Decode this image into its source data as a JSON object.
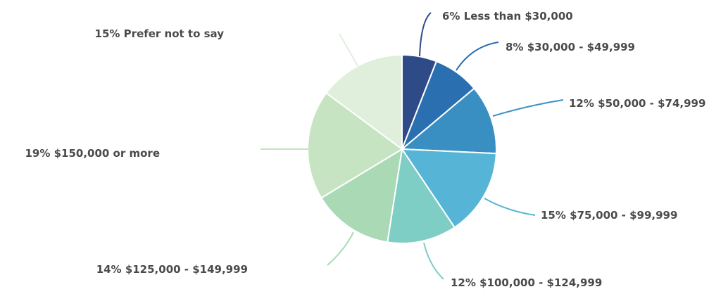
{
  "chart_data": {
    "type": "pie",
    "title": "",
    "categories": [
      "Less than $30,000",
      "$30,000 - $49,999",
      "$50,000 - $74,999",
      "$75,000 - $99,999",
      "$100,000 - $124,999",
      "$125,000 - $149,999",
      "$150,000 or more",
      "Prefer not to say"
    ],
    "values": [
      6,
      8,
      12,
      15,
      12,
      14,
      19,
      15
    ],
    "labels": [
      "6% Less than $30,000",
      "8% $30,000 - $49,999",
      "12% $50,000 - $74,999",
      "15% $75,000 - $99,999",
      "12% $100,000 - $124,999",
      "14% $125,000 - $149,999",
      "19% $150,000 or more",
      "15% Prefer not to say"
    ],
    "colors": [
      "#2e4a87",
      "#2a6faf",
      "#3a8fc2",
      "#56b4d6",
      "#7fcec6",
      "#a9d9b5",
      "#c6e4c2",
      "#e0efdb"
    ],
    "legend": "none"
  }
}
